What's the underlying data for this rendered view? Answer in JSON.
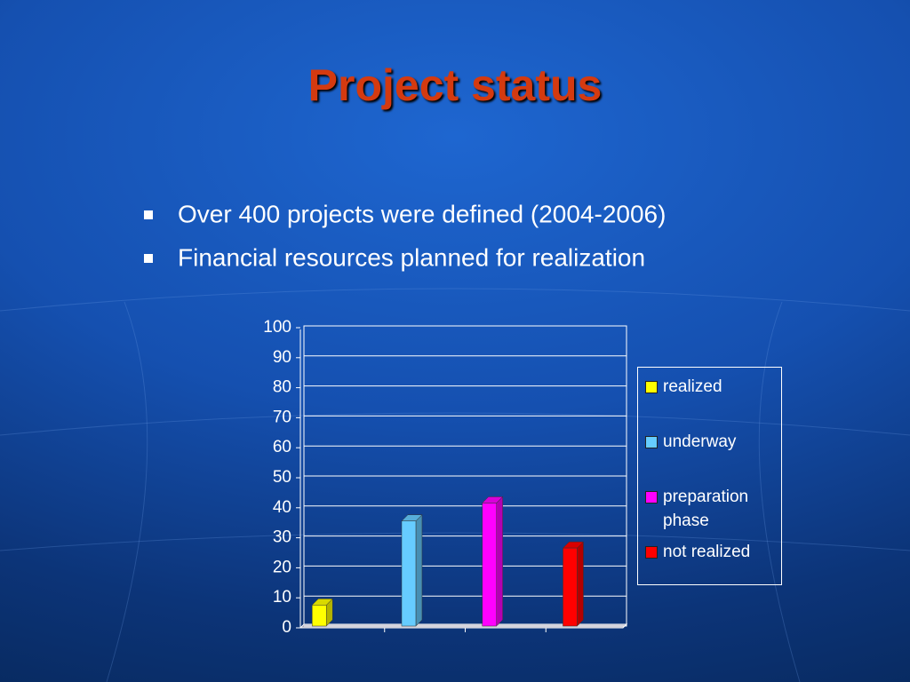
{
  "slide": {
    "title": "Project status",
    "bullets": [
      "Over 400 projects were defined (2004-2006)",
      "Financial resources planned for realization"
    ]
  },
  "chart_data": {
    "type": "bar",
    "three_d": true,
    "grid": true,
    "legend": "right",
    "categories": [
      null,
      null,
      null,
      null
    ],
    "series": [
      {
        "name": "realized",
        "color": "#ffff00",
        "values": [
          7,
          null,
          null,
          null
        ]
      },
      {
        "name": "underway",
        "color": "#66ccff",
        "values": [
          null,
          35,
          null,
          null
        ]
      },
      {
        "name": "preparation phase",
        "color": "#ff00ff",
        "values": [
          null,
          null,
          41,
          null
        ]
      },
      {
        "name": "not realized",
        "color": "#ff0000",
        "values": [
          null,
          null,
          null,
          26
        ]
      }
    ],
    "ylim": [
      0,
      100
    ],
    "yticks": [
      0,
      10,
      20,
      30,
      40,
      50,
      60,
      70,
      80,
      90,
      100
    ]
  }
}
